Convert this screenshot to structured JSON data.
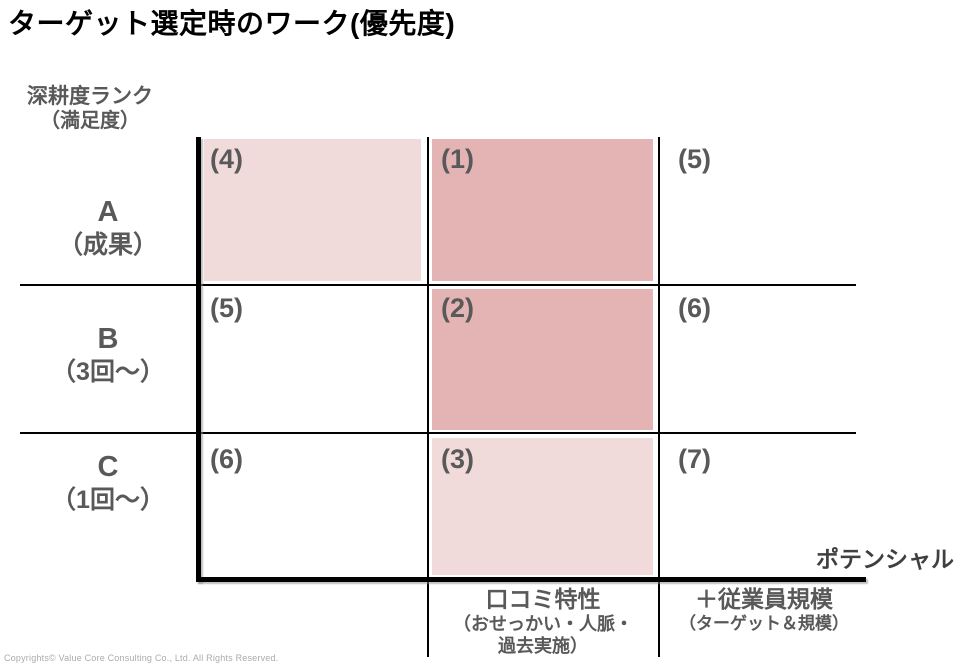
{
  "title": "ターゲット選定時のワーク(優先度)",
  "y_axis": {
    "line1": "深耕度ランク",
    "line2": "（満足度）"
  },
  "x_axis_label": "ポテンシャル",
  "rows": [
    {
      "grade": "A",
      "desc": "（成果）"
    },
    {
      "grade": "B",
      "desc": "（3回～）"
    },
    {
      "grade": "C",
      "desc": "（1回～）"
    }
  ],
  "matrix": {
    "cells": [
      [
        {
          "label": "(4)",
          "shade": "light"
        },
        {
          "label": "(1)",
          "shade": "strong"
        },
        {
          "label": "(5)",
          "shade": "none"
        }
      ],
      [
        {
          "label": "(5)",
          "shade": "none"
        },
        {
          "label": "(2)",
          "shade": "strong"
        },
        {
          "label": "(6)",
          "shade": "none"
        }
      ],
      [
        {
          "label": "(6)",
          "shade": "none"
        },
        {
          "label": "(3)",
          "shade": "light"
        },
        {
          "label": "(7)",
          "shade": "none"
        }
      ]
    ]
  },
  "footer_columns": [
    {
      "line1": "口コミ特性",
      "line2": "（おせっかい・人脈・",
      "line3": "過去実施）"
    },
    {
      "line1": "＋従業員規模",
      "line2": "（ターゲット＆規模）"
    }
  ],
  "copyright": "Copyrights© Value Core Consulting Co., Ltd.  All Rights Reserved.",
  "colors": {
    "highlight_strong": "#e3b4b3",
    "highlight_light": "#f1dbda",
    "label_gray": "#595959",
    "axis_black": "#000000"
  }
}
